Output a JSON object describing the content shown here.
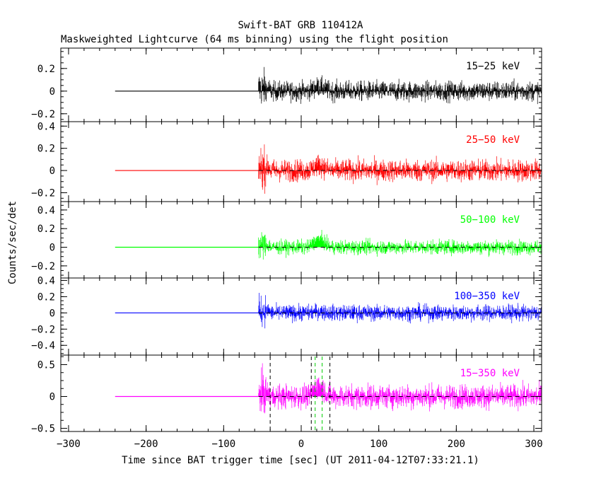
{
  "figure": {
    "title": "Swift-BAT GRB 110412A",
    "subtitle": "Maskweighted Lightcurve (64 ms binning) using the flight position",
    "xlabel": "Time since BAT trigger time [sec] (UT 2011-04-12T07:33:21.1)",
    "ylabel": "Counts/sec/det"
  },
  "chart_data": {
    "type": "line",
    "xlim": [
      -310,
      310
    ],
    "xticks": [
      -300,
      -200,
      -100,
      0,
      100,
      200,
      300
    ],
    "signal_start": -55,
    "data_start": -240,
    "vlines": [
      {
        "x": -40,
        "color": "#000000"
      },
      {
        "x": 13,
        "color": "#000000"
      },
      {
        "x": 18,
        "color": "#00cc00"
      },
      {
        "x": 27,
        "color": "#00cc00"
      },
      {
        "x": 37,
        "color": "#000000"
      }
    ],
    "panels": [
      {
        "name": "15-25 keV",
        "label": "15−25 keV",
        "color": "#000000",
        "ylim": [
          -0.27,
          0.38
        ],
        "ticks": [
          -0.2,
          0,
          0.2
        ],
        "tick_labels": [
          "−0.2",
          "0",
          "0.2"
        ],
        "noise": 0.08,
        "bump": 0.04,
        "vlines": false
      },
      {
        "name": "25-50 keV",
        "label": "25−50 keV",
        "color": "#ff0000",
        "ylim": [
          -0.28,
          0.44
        ],
        "ticks": [
          -0.2,
          0,
          0.2,
          0.4
        ],
        "tick_labels": [
          "−0.2",
          "0",
          "0.2",
          "0.4"
        ],
        "noise": 0.09,
        "bump": 0.05,
        "vlines": false
      },
      {
        "name": "50-100 keV",
        "label": "50−100 keV",
        "color": "#00ff00",
        "ylim": [
          -0.33,
          0.49
        ],
        "ticks": [
          -0.2,
          0,
          0.2,
          0.4
        ],
        "tick_labels": [
          "−0.2",
          "0",
          "0.2",
          "0.4"
        ],
        "noise": 0.07,
        "bump": 0.09,
        "vlines": false
      },
      {
        "name": "100-350 keV",
        "label": "100−350 keV",
        "color": "#0000ff",
        "ylim": [
          -0.52,
          0.43
        ],
        "ticks": [
          -0.4,
          -0.2,
          0,
          0.2,
          0.4
        ],
        "tick_labels": [
          "−0.4",
          "−0.2",
          "0",
          "0.2",
          "0.4"
        ],
        "noise": 0.09,
        "bump": 0.02,
        "vlines": false
      },
      {
        "name": "15-350 keV",
        "label": "15−350 keV",
        "color": "#ff00ff",
        "ylim": [
          -0.55,
          0.65
        ],
        "ticks": [
          -0.5,
          0,
          0.5
        ],
        "tick_labels": [
          "−0.5",
          "0",
          "0.5"
        ],
        "noise": 0.17,
        "bump": 0.18,
        "vlines": true
      }
    ]
  }
}
